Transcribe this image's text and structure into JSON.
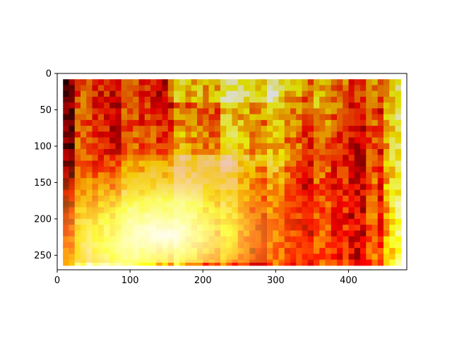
{
  "chart_data": {
    "type": "heatmap",
    "title": "",
    "xlabel": "",
    "ylabel": "",
    "colormap": "hot",
    "xlim": [
      0,
      480
    ],
    "ylim": [
      270,
      0
    ],
    "y_inverted": true,
    "grid": false,
    "x_ticks": [
      {
        "value": 0,
        "label": "0"
      },
      {
        "value": 100,
        "label": "100"
      },
      {
        "value": 200,
        "label": "200"
      },
      {
        "value": 300,
        "label": "300"
      },
      {
        "value": 400,
        "label": "400"
      }
    ],
    "y_ticks": [
      {
        "value": 0,
        "label": "0"
      },
      {
        "value": 50,
        "label": "50"
      },
      {
        "value": 100,
        "label": "100"
      },
      {
        "value": 150,
        "label": "150"
      },
      {
        "value": 200,
        "label": "200"
      },
      {
        "value": 250,
        "label": "250"
      }
    ],
    "content_extent": {
      "x": [
        8,
        472
      ],
      "y": [
        8,
        260
      ]
    }
  }
}
